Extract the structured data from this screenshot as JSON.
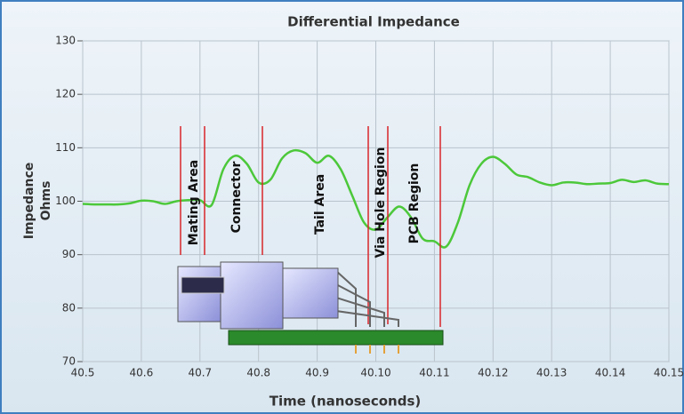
{
  "chart_data": {
    "type": "line",
    "title": "Differential Impedance",
    "x_label": "Time (nanoseconds)",
    "y_label": [
      "Impedance",
      "Ohms"
    ],
    "categories": [
      "40.5",
      null,
      null,
      null,
      null,
      "40.6",
      null,
      null,
      null,
      null,
      "40.7",
      null,
      null,
      null,
      null,
      "40.8",
      null,
      null,
      null,
      null,
      "40.9",
      null,
      null,
      null,
      null,
      "40.10",
      null,
      null,
      null,
      null,
      "40.11",
      null,
      null,
      null,
      null,
      "40.12",
      null,
      null,
      null,
      null,
      "40.13",
      null,
      null,
      null,
      null,
      "40.14",
      null,
      null,
      null,
      null,
      "40.15"
    ],
    "series": [
      {
        "name": "Differential Impedance",
        "color": "#4cc83a",
        "values": [
          99.5,
          99.4,
          99.4,
          99.4,
          99.6,
          100.1,
          100.0,
          99.5,
          100.0,
          100.2,
          100.2,
          99.3,
          106,
          108.5,
          107,
          103.5,
          104,
          108,
          109.5,
          109,
          107.2,
          108.5,
          106,
          101,
          96,
          94.7,
          97,
          99,
          97,
          93,
          92.5,
          91.5,
          96,
          103,
          107,
          108.3,
          107,
          105,
          104.5,
          103.5,
          103,
          103.5,
          103.5,
          103.2,
          103.3,
          103.4,
          104,
          103.6,
          103.9,
          103.3,
          103.2
        ]
      }
    ],
    "ylim": [
      70,
      130
    ],
    "yticks": [
      70,
      80,
      90,
      100,
      110,
      120,
      130
    ],
    "grid": true,
    "annotations": [
      "Mating Area",
      "Connector",
      "Tail Area",
      "Via Hole Region",
      "PCB Region"
    ]
  }
}
